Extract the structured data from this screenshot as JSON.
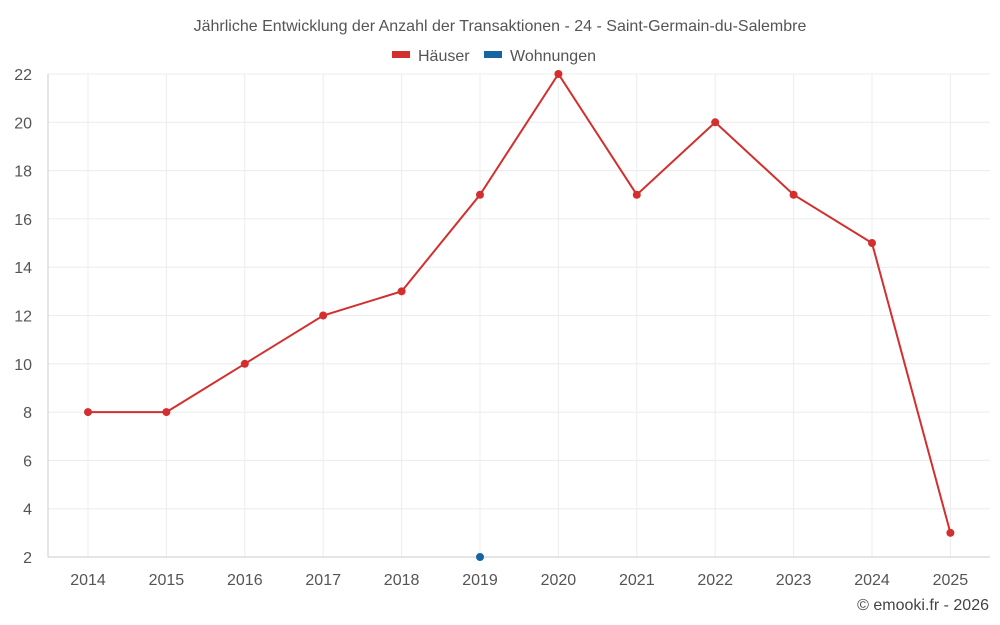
{
  "chart_data": {
    "type": "line",
    "title": "Jährliche Entwicklung der Anzahl der Transaktionen - 24 - Saint-Germain-du-Salembre",
    "categories": [
      "2014",
      "2015",
      "2016",
      "2017",
      "2018",
      "2019",
      "2020",
      "2021",
      "2022",
      "2023",
      "2024",
      "2025"
    ],
    "ylim": [
      2,
      22
    ],
    "yticks": [
      2,
      4,
      6,
      8,
      10,
      12,
      14,
      16,
      18,
      20,
      22
    ],
    "grid": true,
    "legend_position": "top-center",
    "series": [
      {
        "name": "Häuser",
        "color": "#d32f2f",
        "values": [
          8,
          8,
          10,
          12,
          13,
          17,
          22,
          17,
          20,
          17,
          15,
          3
        ]
      },
      {
        "name": "Wohnungen",
        "color": "#1565a0",
        "values": [
          null,
          null,
          null,
          null,
          null,
          2,
          null,
          null,
          null,
          null,
          null,
          null
        ]
      }
    ]
  },
  "credit": "© emooki.fr - 2026"
}
